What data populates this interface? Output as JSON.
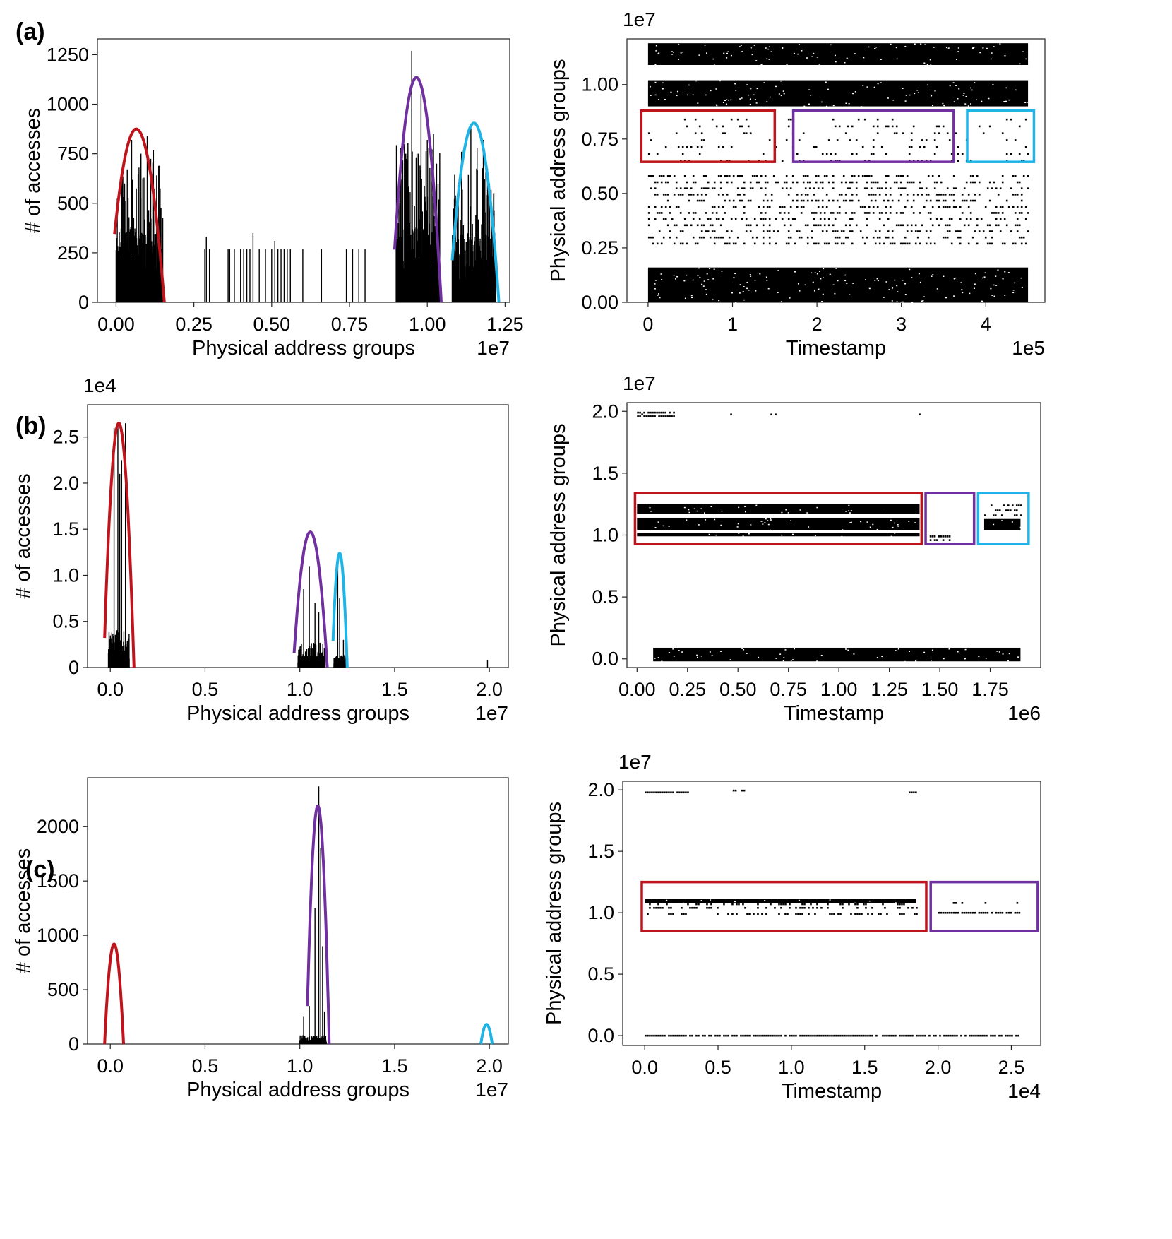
{
  "figure": {
    "panel_labels": [
      "(a)",
      "(b)",
      "(c)"
    ]
  },
  "colors": {
    "red": "#c0141c",
    "purple": "#7030a0",
    "cyan": "#1eb4e6",
    "ink": "#000000"
  },
  "chart_data": [
    {
      "id": "a-hist",
      "type": "bar",
      "panel": "(a)",
      "xlabel": "Physical address groups",
      "ylabel": "# of accesses",
      "x_multiplier": "1e7",
      "y_multiplier": "",
      "xlim": [
        -0.06,
        1.265
      ],
      "ylim": [
        0,
        1330
      ],
      "xticks": [
        0.0,
        0.25,
        0.5,
        0.75,
        1.0,
        1.25
      ],
      "xtick_labels": [
        "0.00",
        "0.25",
        "0.50",
        "0.75",
        "1.00",
        "1.25"
      ],
      "yticks": [
        0,
        250,
        500,
        750,
        1000,
        1250
      ],
      "ytick_labels": [
        "0",
        "250",
        "500",
        "750",
        "1000",
        "1250"
      ],
      "bar_clusters": [
        {
          "x_range": [
            0.0,
            0.15
          ],
          "base": 270,
          "peaks": [
            [
              0.02,
              680
            ],
            [
              0.05,
              820
            ],
            [
              0.08,
              750
            ],
            [
              0.1,
              840
            ],
            [
              0.12,
              770
            ],
            [
              0.14,
              690
            ]
          ]
        },
        {
          "x_range": [
            0.9,
            1.04
          ],
          "base": 300,
          "peaks": [
            [
              0.93,
              750
            ],
            [
              0.95,
              1270
            ],
            [
              0.98,
              1050
            ],
            [
              1.0,
              820
            ],
            [
              1.02,
              850
            ],
            [
              1.03,
              700
            ]
          ]
        },
        {
          "x_range": [
            1.08,
            1.22
          ],
          "base": 260,
          "peaks": [
            [
              1.11,
              760
            ],
            [
              1.14,
              880
            ],
            [
              1.16,
              780
            ],
            [
              1.18,
              820
            ],
            [
              1.2,
              600
            ]
          ]
        }
      ],
      "sparse_bars": [
        [
          0.285,
          270
        ],
        [
          0.29,
          330
        ],
        [
          0.3,
          270
        ],
        [
          0.36,
          270
        ],
        [
          0.365,
          270
        ],
        [
          0.38,
          270
        ],
        [
          0.4,
          270
        ],
        [
          0.41,
          270
        ],
        [
          0.42,
          270
        ],
        [
          0.43,
          270
        ],
        [
          0.44,
          350
        ],
        [
          0.46,
          270
        ],
        [
          0.48,
          270
        ],
        [
          0.5,
          270
        ],
        [
          0.51,
          310
        ],
        [
          0.52,
          270
        ],
        [
          0.53,
          270
        ],
        [
          0.54,
          270
        ],
        [
          0.55,
          270
        ],
        [
          0.56,
          270
        ],
        [
          0.6,
          270
        ],
        [
          0.66,
          270
        ],
        [
          0.74,
          270
        ],
        [
          0.76,
          270
        ],
        [
          0.78,
          270
        ],
        [
          0.8,
          270
        ]
      ],
      "fits": [
        {
          "color": "red",
          "center": 0.065,
          "peak": 875,
          "x_from": -0.005,
          "x_to": 0.155
        },
        {
          "color": "purple",
          "center": 0.965,
          "peak": 1135,
          "x_from": 0.895,
          "x_to": 1.045
        },
        {
          "color": "cyan",
          "center": 1.15,
          "peak": 905,
          "x_from": 1.08,
          "x_to": 1.23
        }
      ]
    },
    {
      "id": "a-scatter",
      "type": "scatter",
      "panel": "(a)",
      "xlabel": "Timestamp",
      "ylabel": "Physical address groups",
      "x_multiplier": "1e5",
      "y_multiplier": "1e7",
      "xlim": [
        -0.25,
        4.7
      ],
      "ylim": [
        0.0,
        1.21
      ],
      "xticks": [
        0,
        1,
        2,
        3,
        4
      ],
      "xtick_labels": [
        "0",
        "1",
        "2",
        "3",
        "4"
      ],
      "yticks": [
        0.0,
        0.25,
        0.5,
        0.75,
        1.0
      ],
      "ytick_labels": [
        "0.00",
        "0.25",
        "0.50",
        "0.75",
        "1.00"
      ],
      "dense_bands": [
        {
          "x": [
            0.0,
            4.5
          ],
          "y": [
            0.0,
            0.16
          ]
        },
        {
          "x": [
            0.0,
            4.5
          ],
          "y": [
            0.9,
            1.02
          ]
        },
        {
          "x": [
            0.0,
            4.5
          ],
          "y": [
            1.09,
            1.19
          ]
        }
      ],
      "sparse_rows": [
        {
          "x": [
            0.0,
            4.5
          ],
          "y": [
            0.27,
            0.58
          ],
          "rows": 12,
          "density": 0.32
        },
        {
          "x": [
            0.0,
            4.5
          ],
          "y": [
            0.65,
            0.84
          ],
          "rows": 7,
          "density": 0.12
        }
      ],
      "boxes": [
        {
          "color": "red",
          "x": [
            -0.08,
            1.5
          ],
          "y": [
            0.645,
            0.88
          ]
        },
        {
          "color": "purple",
          "x": [
            1.72,
            3.62
          ],
          "y": [
            0.645,
            0.88
          ]
        },
        {
          "color": "cyan",
          "x": [
            3.78,
            4.57
          ],
          "y": [
            0.645,
            0.88
          ]
        }
      ]
    },
    {
      "id": "b-hist",
      "type": "bar",
      "panel": "(b)",
      "xlabel": "Physical address groups",
      "ylabel": "# of accesses",
      "x_multiplier": "1e7",
      "y_multiplier": "1e4",
      "xlim": [
        -0.12,
        2.1
      ],
      "ylim": [
        0,
        2.85
      ],
      "xticks": [
        0.0,
        0.5,
        1.0,
        1.5,
        2.0
      ],
      "xtick_labels": [
        "0.0",
        "0.5",
        "1.0",
        "1.5",
        "2.0"
      ],
      "yticks": [
        0,
        0.5,
        1.0,
        1.5,
        2.0,
        2.5
      ],
      "ytick_labels": [
        "0",
        "0.5",
        "1.0",
        "1.5",
        "2.0",
        "2.5"
      ],
      "bar_clusters": [
        {
          "x_range": [
            -0.01,
            0.1
          ],
          "base": 0.15,
          "peaks": [
            [
              0.02,
              2.6
            ],
            [
              0.04,
              2.65
            ],
            [
              0.06,
              2.25
            ],
            [
              0.08,
              2.65
            ],
            [
              0.05,
              2.1
            ]
          ]
        },
        {
          "x_range": [
            0.99,
            1.13
          ],
          "base": 0.1,
          "peaks": [
            [
              1.02,
              0.85
            ],
            [
              1.05,
              1.1
            ],
            [
              1.08,
              0.7
            ],
            [
              1.1,
              0.6
            ]
          ]
        },
        {
          "x_range": [
            1.18,
            1.24
          ],
          "base": 0.05,
          "peaks": [
            [
              1.2,
              1.15
            ],
            [
              1.21,
              0.75
            ],
            [
              1.23,
              0.3
            ]
          ]
        }
      ],
      "sparse_bars": [
        [
          1.99,
          0.08
        ]
      ],
      "fits": [
        {
          "color": "red",
          "center": 0.045,
          "peak": 2.65,
          "x_from": -0.03,
          "x_to": 0.125
        },
        {
          "color": "purple",
          "center": 1.055,
          "peak": 1.47,
          "x_from": 0.97,
          "x_to": 1.145
        },
        {
          "color": "cyan",
          "center": 1.21,
          "peak": 1.24,
          "x_from": 1.175,
          "x_to": 1.25
        }
      ]
    },
    {
      "id": "b-scatter",
      "type": "scatter",
      "panel": "(b)",
      "xlabel": "Timestamp",
      "ylabel": "Physical address groups",
      "x_multiplier": "1e6",
      "y_multiplier": "1e7",
      "xlim": [
        -0.05,
        2.0
      ],
      "ylim": [
        -0.07,
        2.07
      ],
      "xticks": [
        0.0,
        0.25,
        0.5,
        0.75,
        1.0,
        1.25,
        1.5,
        1.75
      ],
      "xtick_labels": [
        "0.00",
        "0.25",
        "0.50",
        "0.75",
        "1.00",
        "1.25",
        "1.50",
        "1.75"
      ],
      "yticks": [
        0.0,
        0.5,
        1.0,
        1.5,
        2.0
      ],
      "ytick_labels": [
        "0.0",
        "0.5",
        "1.0",
        "1.5",
        "2.0"
      ],
      "dense_bands": [
        {
          "x": [
            0.08,
            1.9
          ],
          "y": [
            -0.02,
            0.09
          ]
        },
        {
          "x": [
            0.0,
            1.4
          ],
          "y": [
            1.04,
            1.14
          ]
        },
        {
          "x": [
            0.0,
            1.4
          ],
          "y": [
            0.99,
            1.02
          ]
        },
        {
          "x": [
            0.0,
            1.4
          ],
          "y": [
            1.17,
            1.25
          ]
        },
        {
          "x": [
            1.72,
            1.9
          ],
          "y": [
            1.04,
            1.13
          ]
        }
      ],
      "sparse_rows": [
        {
          "x": [
            0.0,
            0.18
          ],
          "y": [
            1.96,
            1.99
          ],
          "rows": 2,
          "density": 0.8
        },
        {
          "x": [
            0.0,
            1.4
          ],
          "y": [
            1.96,
            1.99
          ],
          "rows": 1,
          "density": 0.06
        },
        {
          "x": [
            1.45,
            1.55
          ],
          "y": [
            0.96,
            0.99
          ],
          "rows": 2,
          "density": 0.6
        },
        {
          "x": [
            1.72,
            1.9
          ],
          "y": [
            1.16,
            1.24
          ],
          "rows": 3,
          "density": 0.5
        }
      ],
      "boxes": [
        {
          "color": "red",
          "x": [
            -0.01,
            1.41
          ],
          "y": [
            0.93,
            1.34
          ]
        },
        {
          "color": "purple",
          "x": [
            1.43,
            1.67
          ],
          "y": [
            0.93,
            1.34
          ]
        },
        {
          "color": "cyan",
          "x": [
            1.69,
            1.94
          ],
          "y": [
            0.93,
            1.34
          ]
        }
      ]
    },
    {
      "id": "c-hist",
      "type": "bar",
      "panel": "(c)",
      "xlabel": "Physical address groups",
      "ylabel": "# of accesses",
      "x_multiplier": "1e7",
      "y_multiplier": "",
      "xlim": [
        -0.12,
        2.1
      ],
      "ylim": [
        0,
        2450
      ],
      "xticks": [
        0.0,
        0.5,
        1.0,
        1.5,
        2.0
      ],
      "xtick_labels": [
        "0.0",
        "0.5",
        "1.0",
        "1.5",
        "2.0"
      ],
      "yticks": [
        0,
        500,
        1000,
        1500,
        2000
      ],
      "ytick_labels": [
        "0",
        "500",
        "1000",
        "1500",
        "2000"
      ],
      "bar_clusters": [
        {
          "x_range": [
            1.0,
            1.14
          ],
          "base": 30,
          "peaks": [
            [
              1.02,
              250
            ],
            [
              1.05,
              350
            ],
            [
              1.08,
              1250
            ],
            [
              1.1,
              2370
            ],
            [
              1.11,
              1800
            ],
            [
              1.12,
              900
            ],
            [
              1.13,
              300
            ]
          ]
        }
      ],
      "sparse_bars": [],
      "fits": [
        {
          "color": "red",
          "center": 0.02,
          "peak": 920,
          "x_from": -0.03,
          "x_to": 0.07
        },
        {
          "color": "purple",
          "center": 1.095,
          "peak": 2190,
          "x_from": 1.04,
          "x_to": 1.155
        },
        {
          "color": "cyan",
          "center": 1.985,
          "peak": 180,
          "x_from": 1.955,
          "x_to": 2.015
        }
      ]
    },
    {
      "id": "c-scatter",
      "type": "scatter",
      "panel": "(c)",
      "xlabel": "Timestamp",
      "ylabel": "Physical address groups",
      "x_multiplier": "1e4",
      "y_multiplier": "1e7",
      "xlim": [
        -0.15,
        2.7
      ],
      "ylim": [
        -0.08,
        2.07
      ],
      "xticks": [
        0.0,
        0.5,
        1.0,
        1.5,
        2.0,
        2.5
      ],
      "xtick_labels": [
        "0.0",
        "0.5",
        "1.0",
        "1.5",
        "2.0",
        "2.5"
      ],
      "yticks": [
        0.0,
        0.5,
        1.0,
        1.5,
        2.0
      ],
      "ytick_labels": [
        "0.0",
        "0.5",
        "1.0",
        "1.5",
        "2.0"
      ],
      "dense_bands": [
        {
          "x": [
            0.0,
            1.85
          ],
          "y": [
            1.08,
            1.11
          ]
        }
      ],
      "sparse_rows": [
        {
          "x": [
            0.0,
            0.3
          ],
          "y": [
            1.97,
            1.99
          ],
          "rows": 1,
          "density": 0.9
        },
        {
          "x": [
            0.6,
            0.7
          ],
          "y": [
            1.99,
            2.0
          ],
          "rows": 1,
          "density": 0.9
        },
        {
          "x": [
            1.8,
            1.86
          ],
          "y": [
            1.97,
            1.99
          ],
          "rows": 1,
          "density": 0.9
        },
        {
          "x": [
            0.0,
            2.55
          ],
          "y": [
            -0.005,
            0.005
          ],
          "rows": 1,
          "density": 0.85
        },
        {
          "x": [
            0.0,
            1.85
          ],
          "y": [
            1.04,
            1.07
          ],
          "rows": 2,
          "density": 0.3
        },
        {
          "x": [
            0.0,
            1.85
          ],
          "y": [
            0.98,
            1.0
          ],
          "rows": 1,
          "density": 0.45
        },
        {
          "x": [
            2.0,
            2.55
          ],
          "y": [
            1.0,
            1.0
          ],
          "rows": 1,
          "density": 0.85
        },
        {
          "x": [
            2.0,
            2.55
          ],
          "y": [
            1.07,
            1.09
          ],
          "rows": 1,
          "density": 0.15
        }
      ],
      "boxes": [
        {
          "color": "red",
          "x": [
            -0.02,
            1.92
          ],
          "y": [
            0.85,
            1.25
          ]
        },
        {
          "color": "purple",
          "x": [
            1.95,
            2.68
          ],
          "y": [
            0.85,
            1.25
          ]
        }
      ]
    }
  ]
}
